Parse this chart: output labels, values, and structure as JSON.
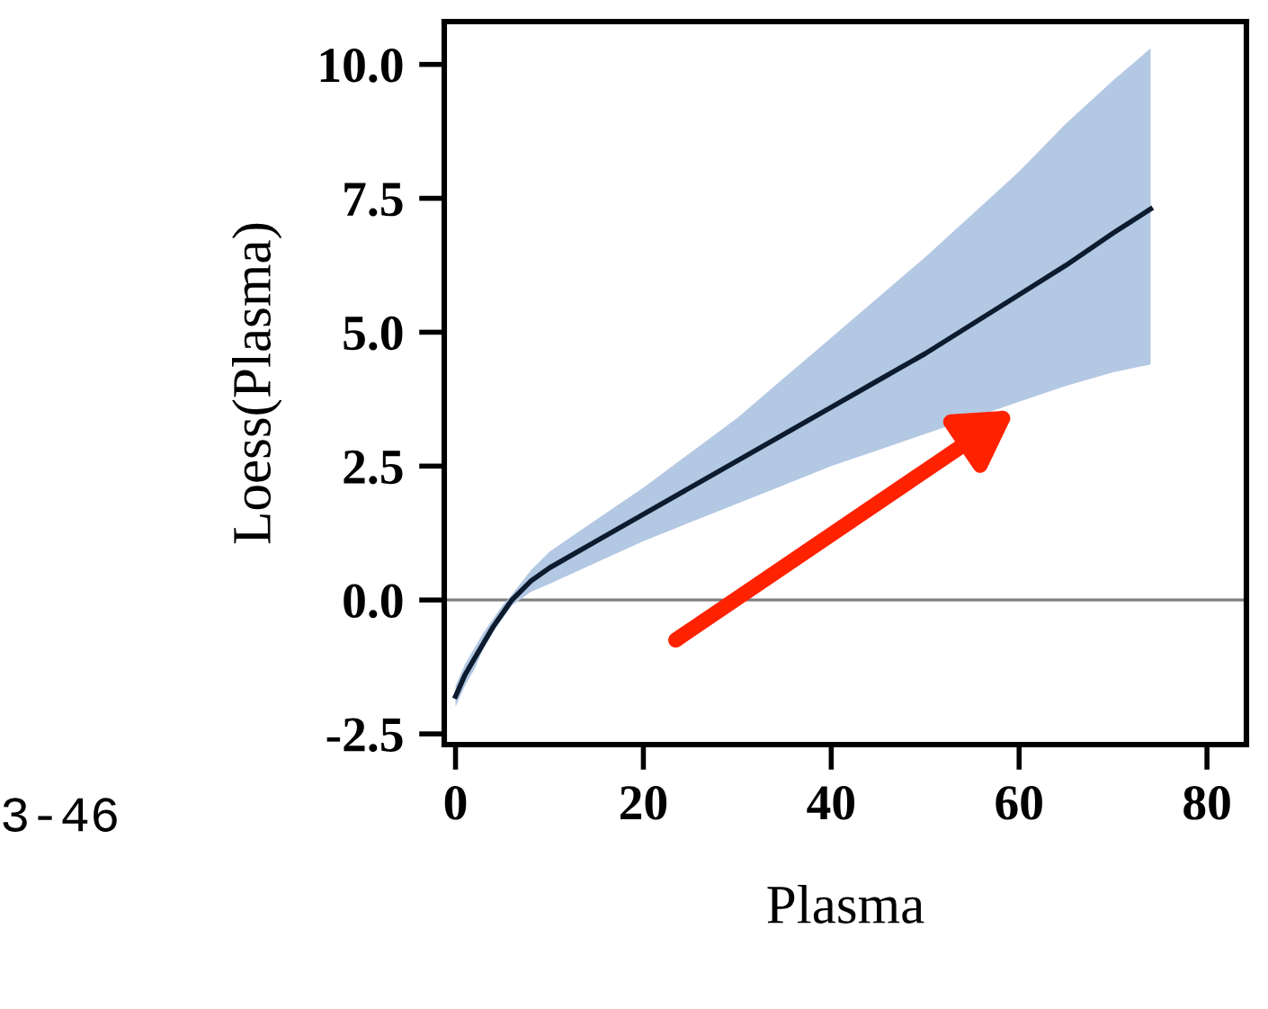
{
  "chart_data": {
    "type": "line",
    "xlabel": "Plasma",
    "ylabel": "Loess(Plasma)",
    "series": [
      {
        "color": "#0d1b2e",
        "x": [
          0,
          1,
          2,
          3,
          4,
          5,
          6,
          8,
          10,
          15,
          20,
          25,
          30,
          35,
          40,
          45,
          50,
          55,
          60,
          65,
          70,
          74
        ],
        "values": [
          -1.8,
          -1.4,
          -1.1,
          -0.8,
          -0.5,
          -0.25,
          0,
          0.35,
          0.6,
          1.1,
          1.6,
          2.1,
          2.6,
          3.1,
          3.6,
          4.1,
          4.6,
          5.15,
          5.7,
          6.25,
          6.85,
          7.3
        ],
        "lower": [
          -2.0,
          -1.6,
          -1.3,
          -0.9,
          -0.6,
          -0.35,
          -0.1,
          0.15,
          0.3,
          0.7,
          1.1,
          1.45,
          1.8,
          2.15,
          2.5,
          2.8,
          3.1,
          3.4,
          3.7,
          4.0,
          4.25,
          4.4
        ],
        "upper": [
          -1.6,
          -1.2,
          -0.9,
          -0.6,
          -0.35,
          -0.1,
          0.1,
          0.55,
          0.9,
          1.5,
          2.1,
          2.75,
          3.4,
          4.15,
          4.9,
          5.65,
          6.4,
          7.2,
          8.0,
          8.9,
          9.7,
          10.3
        ]
      }
    ],
    "xlim": [
      -1.2,
      84.2
    ],
    "ylim": [
      -2.7,
      10.8
    ],
    "xticks": [
      0,
      20,
      40,
      60,
      80
    ],
    "yticks": [
      {
        "value": -2.5,
        "label": "-2.5"
      },
      {
        "value": 0,
        "label": "0.0"
      },
      {
        "value": 2.5,
        "label": "2.5"
      },
      {
        "value": 5,
        "label": "5.0"
      },
      {
        "value": 7.5,
        "label": "7.5"
      },
      {
        "value": 10,
        "label": "10.0"
      }
    ],
    "ref_lines": [
      {
        "axis": "y",
        "value": 0,
        "color": "#808080"
      }
    ],
    "annotations": [
      "3-46"
    ]
  }
}
